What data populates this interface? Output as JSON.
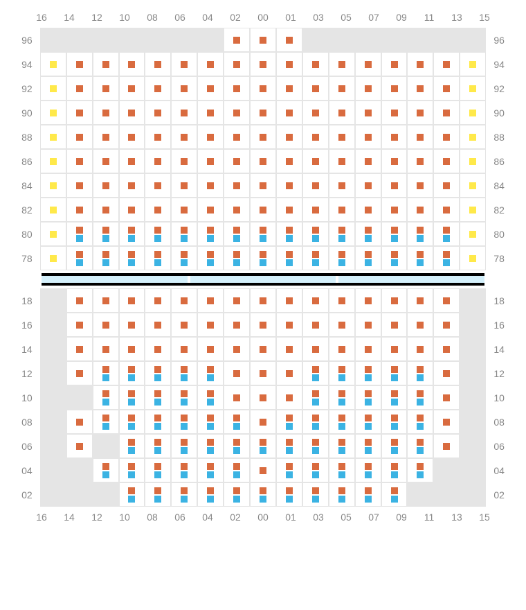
{
  "colors": {
    "orange": "#d96b3f",
    "yellow": "#ffe94a",
    "blue": "#3bb3e3",
    "blank": "#e5e5e5",
    "grid": "#e5e5e5",
    "label": "#888888",
    "walkway_fill": "#d4f0fb",
    "walkway_border": "#000000"
  },
  "columns": [
    "16",
    "14",
    "12",
    "10",
    "08",
    "06",
    "04",
    "02",
    "00",
    "01",
    "03",
    "05",
    "07",
    "09",
    "11",
    "13",
    "15"
  ],
  "upper": {
    "rows": [
      "96",
      "94",
      "92",
      "90",
      "88",
      "86",
      "84",
      "82",
      "80",
      "78"
    ],
    "cells": [
      [
        "x",
        "x",
        "x",
        "x",
        "x",
        "x",
        "x",
        "o",
        "o",
        "o",
        "x",
        "x",
        "x",
        "x",
        "x",
        "x",
        "x"
      ],
      [
        "y",
        "o",
        "o",
        "o",
        "o",
        "o",
        "o",
        "o",
        "o",
        "o",
        "o",
        "o",
        "o",
        "o",
        "o",
        "o",
        "y"
      ],
      [
        "y",
        "o",
        "o",
        "o",
        "o",
        "o",
        "o",
        "o",
        "o",
        "o",
        "o",
        "o",
        "o",
        "o",
        "o",
        "o",
        "y"
      ],
      [
        "y",
        "o",
        "o",
        "o",
        "o",
        "o",
        "o",
        "o",
        "o",
        "o",
        "o",
        "o",
        "o",
        "o",
        "o",
        "o",
        "y"
      ],
      [
        "y",
        "o",
        "o",
        "o",
        "o",
        "o",
        "o",
        "o",
        "o",
        "o",
        "o",
        "o",
        "o",
        "o",
        "o",
        "o",
        "y"
      ],
      [
        "y",
        "o",
        "o",
        "o",
        "o",
        "o",
        "o",
        "o",
        "o",
        "o",
        "o",
        "o",
        "o",
        "o",
        "o",
        "o",
        "y"
      ],
      [
        "y",
        "o",
        "o",
        "o",
        "o",
        "o",
        "o",
        "o",
        "o",
        "o",
        "o",
        "o",
        "o",
        "o",
        "o",
        "o",
        "y"
      ],
      [
        "y",
        "o",
        "o",
        "o",
        "o",
        "o",
        "o",
        "o",
        "o",
        "o",
        "o",
        "o",
        "o",
        "o",
        "o",
        "o",
        "y"
      ],
      [
        "y",
        "ob",
        "ob",
        "ob",
        "ob",
        "ob",
        "ob",
        "ob",
        "ob",
        "ob",
        "ob",
        "ob",
        "ob",
        "ob",
        "ob",
        "ob",
        "y"
      ],
      [
        "y",
        "ob",
        "ob",
        "ob",
        "ob",
        "ob",
        "ob",
        "ob",
        "ob",
        "ob",
        "ob",
        "ob",
        "ob",
        "ob",
        "ob",
        "ob",
        "y"
      ]
    ]
  },
  "lower": {
    "rows": [
      "18",
      "16",
      "14",
      "12",
      "10",
      "08",
      "06",
      "04",
      "02"
    ],
    "cells": [
      [
        "x",
        "o",
        "o",
        "o",
        "o",
        "o",
        "o",
        "o",
        "o",
        "o",
        "o",
        "o",
        "o",
        "o",
        "o",
        "o",
        "x"
      ],
      [
        "x",
        "o",
        "o",
        "o",
        "o",
        "o",
        "o",
        "o",
        "o",
        "o",
        "o",
        "o",
        "o",
        "o",
        "o",
        "o",
        "x"
      ],
      [
        "x",
        "o",
        "o",
        "o",
        "o",
        "o",
        "o",
        "o",
        "o",
        "o",
        "o",
        "o",
        "o",
        "o",
        "o",
        "o",
        "x"
      ],
      [
        "x",
        "o",
        "ob",
        "ob",
        "ob",
        "ob",
        "ob",
        "o",
        "o",
        "o",
        "ob",
        "ob",
        "ob",
        "ob",
        "ob",
        "o",
        "x"
      ],
      [
        "x",
        "x",
        "ob",
        "ob",
        "ob",
        "ob",
        "ob",
        "o",
        "o",
        "o",
        "ob",
        "ob",
        "ob",
        "ob",
        "ob",
        "o",
        "x"
      ],
      [
        "x",
        "o",
        "ob",
        "ob",
        "ob",
        "ob",
        "ob",
        "ob",
        "o",
        "ob",
        "ob",
        "ob",
        "ob",
        "ob",
        "ob",
        "o",
        "x"
      ],
      [
        "x",
        "o",
        "x",
        "ob",
        "ob",
        "ob",
        "ob",
        "ob",
        "ob",
        "ob",
        "ob",
        "ob",
        "ob",
        "ob",
        "ob",
        "o",
        "x"
      ],
      [
        "x",
        "x",
        "ob",
        "ob",
        "ob",
        "ob",
        "ob",
        "ob",
        "o",
        "ob",
        "ob",
        "ob",
        "ob",
        "ob",
        "ob",
        "x",
        "x"
      ],
      [
        "x",
        "x",
        "x",
        "ob",
        "ob",
        "ob",
        "ob",
        "ob",
        "ob",
        "ob",
        "ob",
        "ob",
        "ob",
        "ob",
        "x",
        "x",
        "x"
      ]
    ]
  },
  "walkway_segments": 3
}
